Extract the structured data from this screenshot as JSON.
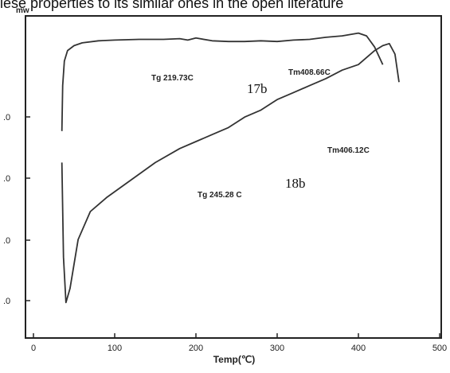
{
  "caption_fragment": "iese properties to its similar ones in the open literature",
  "chart_data": {
    "type": "line",
    "y_unit_label": "mw",
    "xlabel": "Temp(℃)",
    "xlim": [
      -10,
      510
    ],
    "x_ticks": [
      0,
      100,
      200,
      300,
      400,
      500
    ],
    "x_tick_labels": [
      "0",
      "100",
      "200",
      "300",
      "400",
      "500"
    ],
    "y_tick_labels": [
      ".0",
      ".0",
      ".0",
      ".0"
    ],
    "grid": false,
    "series": [
      {
        "name": "17b",
        "x": [
          35,
          36,
          38,
          42,
          50,
          60,
          80,
          100,
          130,
          160,
          180,
          190,
          200,
          220,
          240,
          260,
          280,
          300,
          320,
          340,
          360,
          380,
          390,
          400,
          410,
          420,
          430
        ],
        "y": [
          3.4,
          4.05,
          4.4,
          4.55,
          4.62,
          4.66,
          4.69,
          4.7,
          4.71,
          4.71,
          4.72,
          4.7,
          4.73,
          4.69,
          4.68,
          4.68,
          4.69,
          4.68,
          4.7,
          4.71,
          4.74,
          4.76,
          4.78,
          4.8,
          4.76,
          4.6,
          4.35
        ]
      },
      {
        "name": "18b",
        "x": [
          35,
          37,
          40,
          45,
          55,
          70,
          90,
          120,
          150,
          180,
          200,
          220,
          240,
          260,
          280,
          300,
          320,
          340,
          360,
          380,
          400,
          420,
          430,
          438,
          445,
          450
        ],
        "y": [
          2.95,
          1.6,
          0.95,
          1.15,
          1.85,
          2.25,
          2.45,
          2.7,
          2.95,
          3.15,
          3.25,
          3.35,
          3.45,
          3.6,
          3.7,
          3.85,
          3.95,
          4.05,
          4.15,
          4.27,
          4.35,
          4.55,
          4.62,
          4.65,
          4.5,
          4.1
        ]
      }
    ],
    "annotations": [
      {
        "text": "Tg 219.73C",
        "series": "17b"
      },
      {
        "text": "Tm408.66C",
        "series": "17b"
      },
      {
        "text": "Tg 245.28 C",
        "series": "18b"
      },
      {
        "text": "Tm406.12C",
        "series": "18b"
      }
    ],
    "curve_labels": [
      "17b",
      "18b"
    ]
  }
}
